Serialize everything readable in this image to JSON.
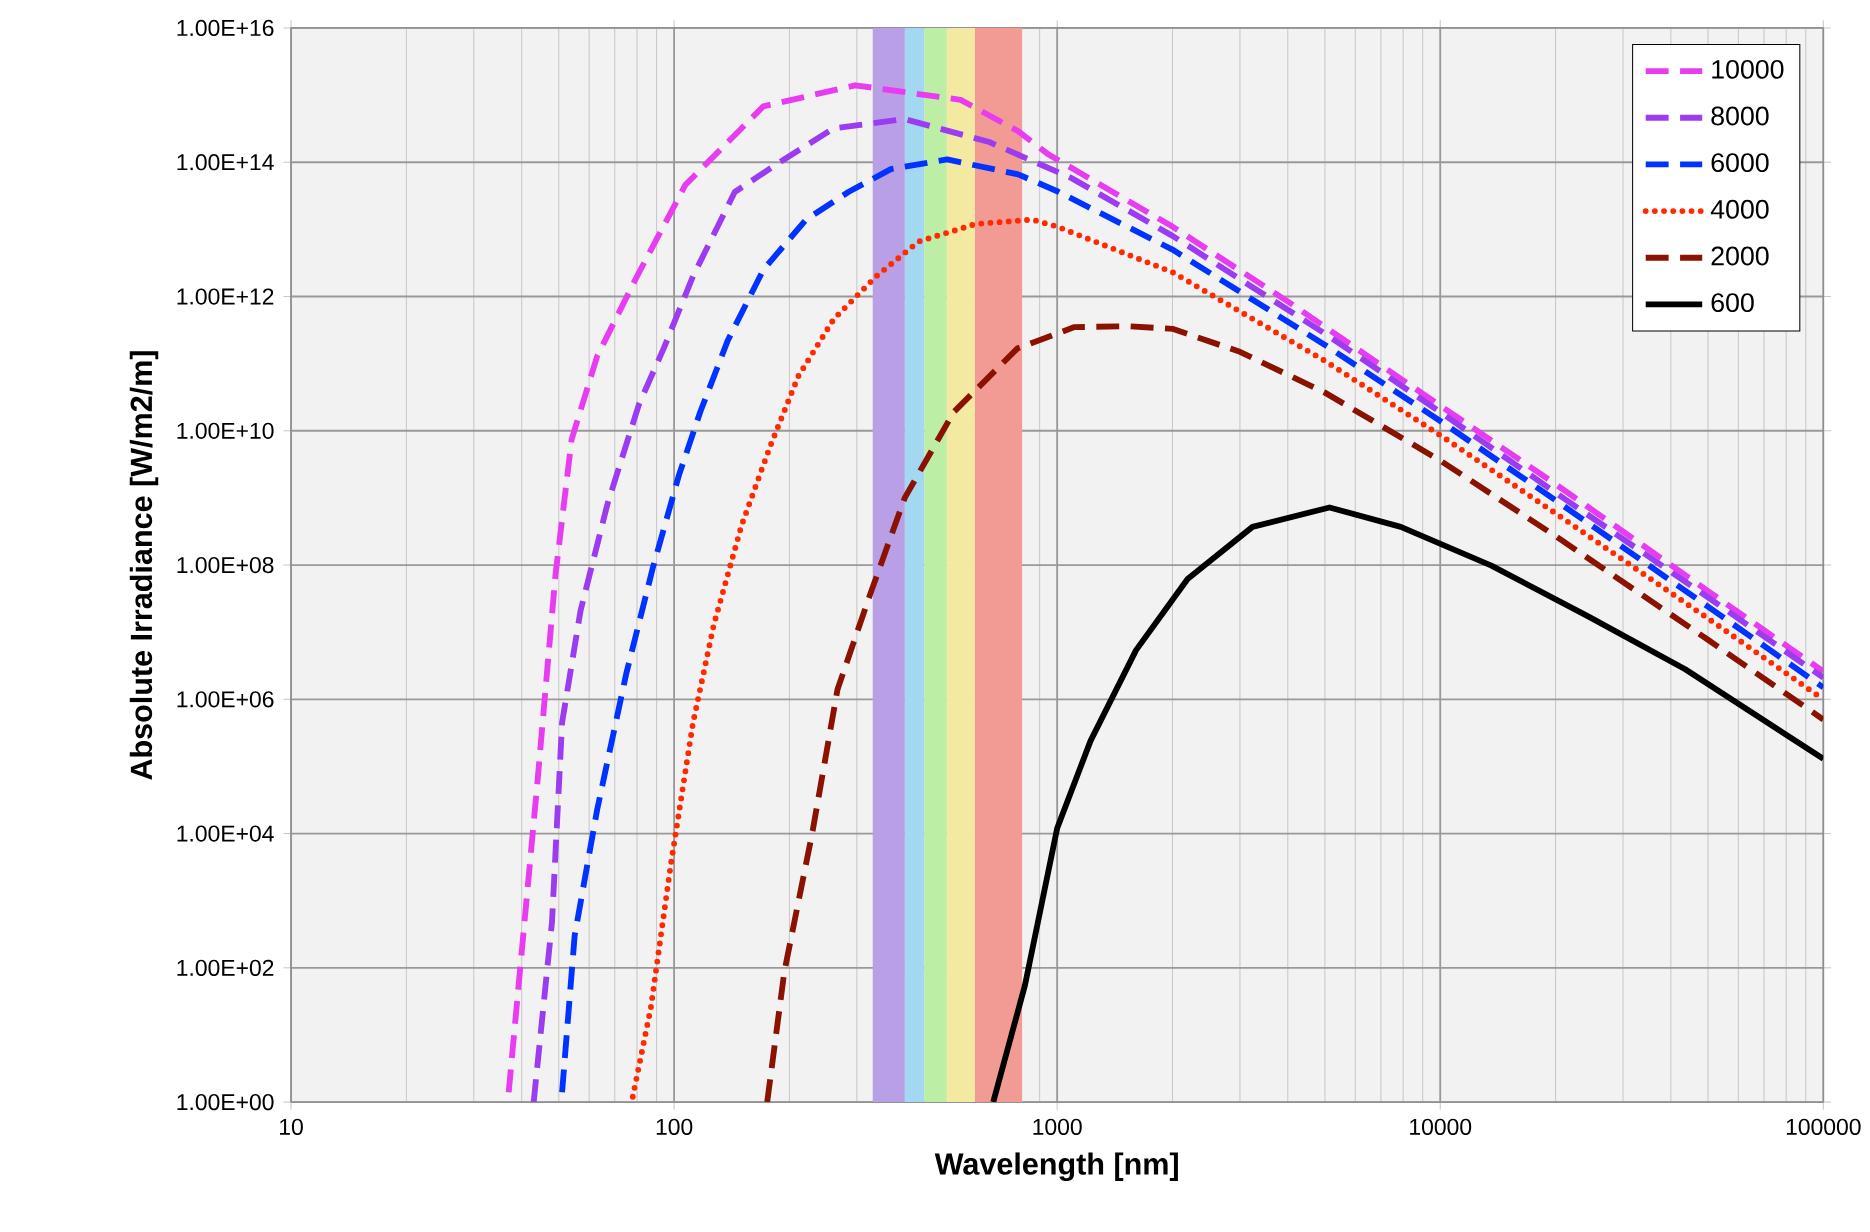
{
  "chart_data": {
    "type": "line",
    "xlabel": "Wavelength [nm]",
    "ylabel": "Absolute Irradiance [W/m2/m]",
    "log": "xy",
    "xlim": [
      10,
      100000
    ],
    "ylim": [
      1,
      1e+16
    ],
    "xticks": [
      10,
      100,
      1000,
      10000,
      100000
    ],
    "yticks": [
      {
        "value": 1,
        "label": "1.00E+00"
      },
      {
        "value": 100,
        "label": "1.00E+02"
      },
      {
        "value": 10000,
        "label": "1.00E+04"
      },
      {
        "value": 1000000,
        "label": "1.00E+06"
      },
      {
        "value": 100000000,
        "label": "1.00E+08"
      },
      {
        "value": 10000000000.0,
        "label": "1.00E+10"
      },
      {
        "value": 1000000000000.0,
        "label": "1.00E+12"
      },
      {
        "value": 100000000000000.0,
        "label": "1.00E+14"
      },
      {
        "value": 1e+16,
        "label": "1.00E+16"
      }
    ],
    "grid": true,
    "legend": "top right",
    "marker": "none",
    "bands": [
      {
        "axis": "x",
        "from": 330,
        "to": 400,
        "color": "#b9a0e6"
      },
      {
        "axis": "x",
        "from": 400,
        "to": 450,
        "color": "#a4d8f2"
      },
      {
        "axis": "x",
        "from": 450,
        "to": 515,
        "color": "#bdeea6"
      },
      {
        "axis": "x",
        "from": 515,
        "to": 610,
        "color": "#f3e9a0"
      },
      {
        "axis": "x",
        "from": 610,
        "to": 810,
        "color": "#f29a94"
      }
    ],
    "series": [
      {
        "name": "10000",
        "color": "#e83cf0",
        "line_style": "dashed",
        "x": [
          37,
          44,
          49,
          54,
          63,
          80,
          107,
          171,
          297,
          560,
          791,
          950,
          2000,
          4070,
          8050,
          20000,
          50000,
          100000
        ],
        "values": [
          1.4,
          60000.0,
          70000000.0,
          7400000000.0,
          130000000000.0,
          2000000000000.0,
          46000000000000.0,
          680000000000000.0,
          1400000000000000.0,
          850000000000000.0,
          290000000000000.0,
          130000000000000.0,
          11000000000000.0,
          790000000000.0,
          55000000000.0,
          1600000000.0,
          41000000.0,
          2600000.0
        ]
      },
      {
        "name": "8000",
        "color": "#9b3cf0",
        "line_style": "dashed",
        "x": [
          43,
          48,
          51,
          57,
          67,
          81,
          94,
          112,
          144,
          186,
          261,
          400,
          665,
          1090,
          2000,
          5000,
          10000,
          20000,
          50000,
          100000
        ],
        "values": [
          1,
          480,
          450000.0,
          21000000.0,
          810000000.0,
          25000000000.0,
          170000000000.0,
          2000000000000.0,
          36000000000000.0,
          95000000000000.0,
          320000000000000.0,
          440000000000000.0,
          200000000000000.0,
          58000000000000.0,
          8000000000000.0,
          280000000000.0,
          19000000000.0,
          1200000000.0,
          33000000.0,
          2100000.0
        ]
      },
      {
        "name": "6000",
        "color": "#0033ff",
        "line_style": "dashed",
        "x": [
          51,
          55,
          63,
          75,
          88,
          103,
          117,
          138,
          171,
          221,
          285,
          368,
          516,
          791,
          1000,
          2000,
          5000,
          10000,
          20000,
          50000,
          100000
        ],
        "values": [
          1.4,
          300,
          23000.0,
          2400000.0,
          91000000.0,
          2200000000.0,
          19000000000.0,
          220000000000.0,
          2500000000000.0,
          14000000000000.0,
          36000000000000.0,
          79000000000000.0,
          110000000000000.0,
          66000000000000.0,
          37000000000000.0,
          5000000000000.0,
          190000000000.0,
          14000000000.0,
          920000000.0,
          24000000.0,
          1500000.0
        ]
      },
      {
        "name": "4000",
        "color": "#ff2a00",
        "line_style": "dotted",
        "x": [
          78,
          87,
          98,
          112,
          127,
          150,
          178,
          211,
          261,
          337,
          435,
          612,
          860,
          1000,
          2000,
          5000,
          10000,
          20000,
          50000,
          100000
        ],
        "values": [
          1.2,
          26,
          3400,
          440000.0,
          13000000.0,
          390000000.0,
          5800000000.0,
          65000000000.0,
          460000000000.0,
          2000000000000.0,
          6600000000000.0,
          12000000000000.0,
          14000000000000.0,
          11000000000000.0,
          2300000000000.0,
          110000000000.0,
          8600000000.0,
          590000000.0,
          16000000.0,
          1000000.0
        ]
      },
      {
        "name": "2000",
        "color": "#8b1200",
        "line_style": "dashed",
        "x": [
          175,
          194,
          230,
          267,
          324,
          400,
          537,
          789,
          1110,
          1545,
          2000,
          3000,
          5000,
          10000,
          20000,
          50000,
          100000
        ],
        "values": [
          1,
          87,
          11000.0,
          1400000.0,
          35000000.0,
          1000000000.0,
          19000000000.0,
          170000000000.0,
          350000000000.0,
          360000000000.0,
          330000000000.0,
          150000000000.0,
          37000000000.0,
          3600000000.0,
          270000000.0,
          7700000.0,
          500000.0
        ]
      },
      {
        "name": "600",
        "color": "#000000",
        "line_style": "solid",
        "x": [
          681,
          824,
          1000,
          1222,
          1607,
          2190,
          3235,
          5140,
          7890,
          13600,
          24400,
          43600,
          100000
        ],
        "values": [
          1,
          55,
          12000.0,
          240000.0,
          5400000.0,
          62000000.0,
          370000000.0,
          720000000.0,
          370000000.0,
          98000000.0,
          17000000.0,
          2800000.0,
          130000.0
        ]
      }
    ]
  }
}
